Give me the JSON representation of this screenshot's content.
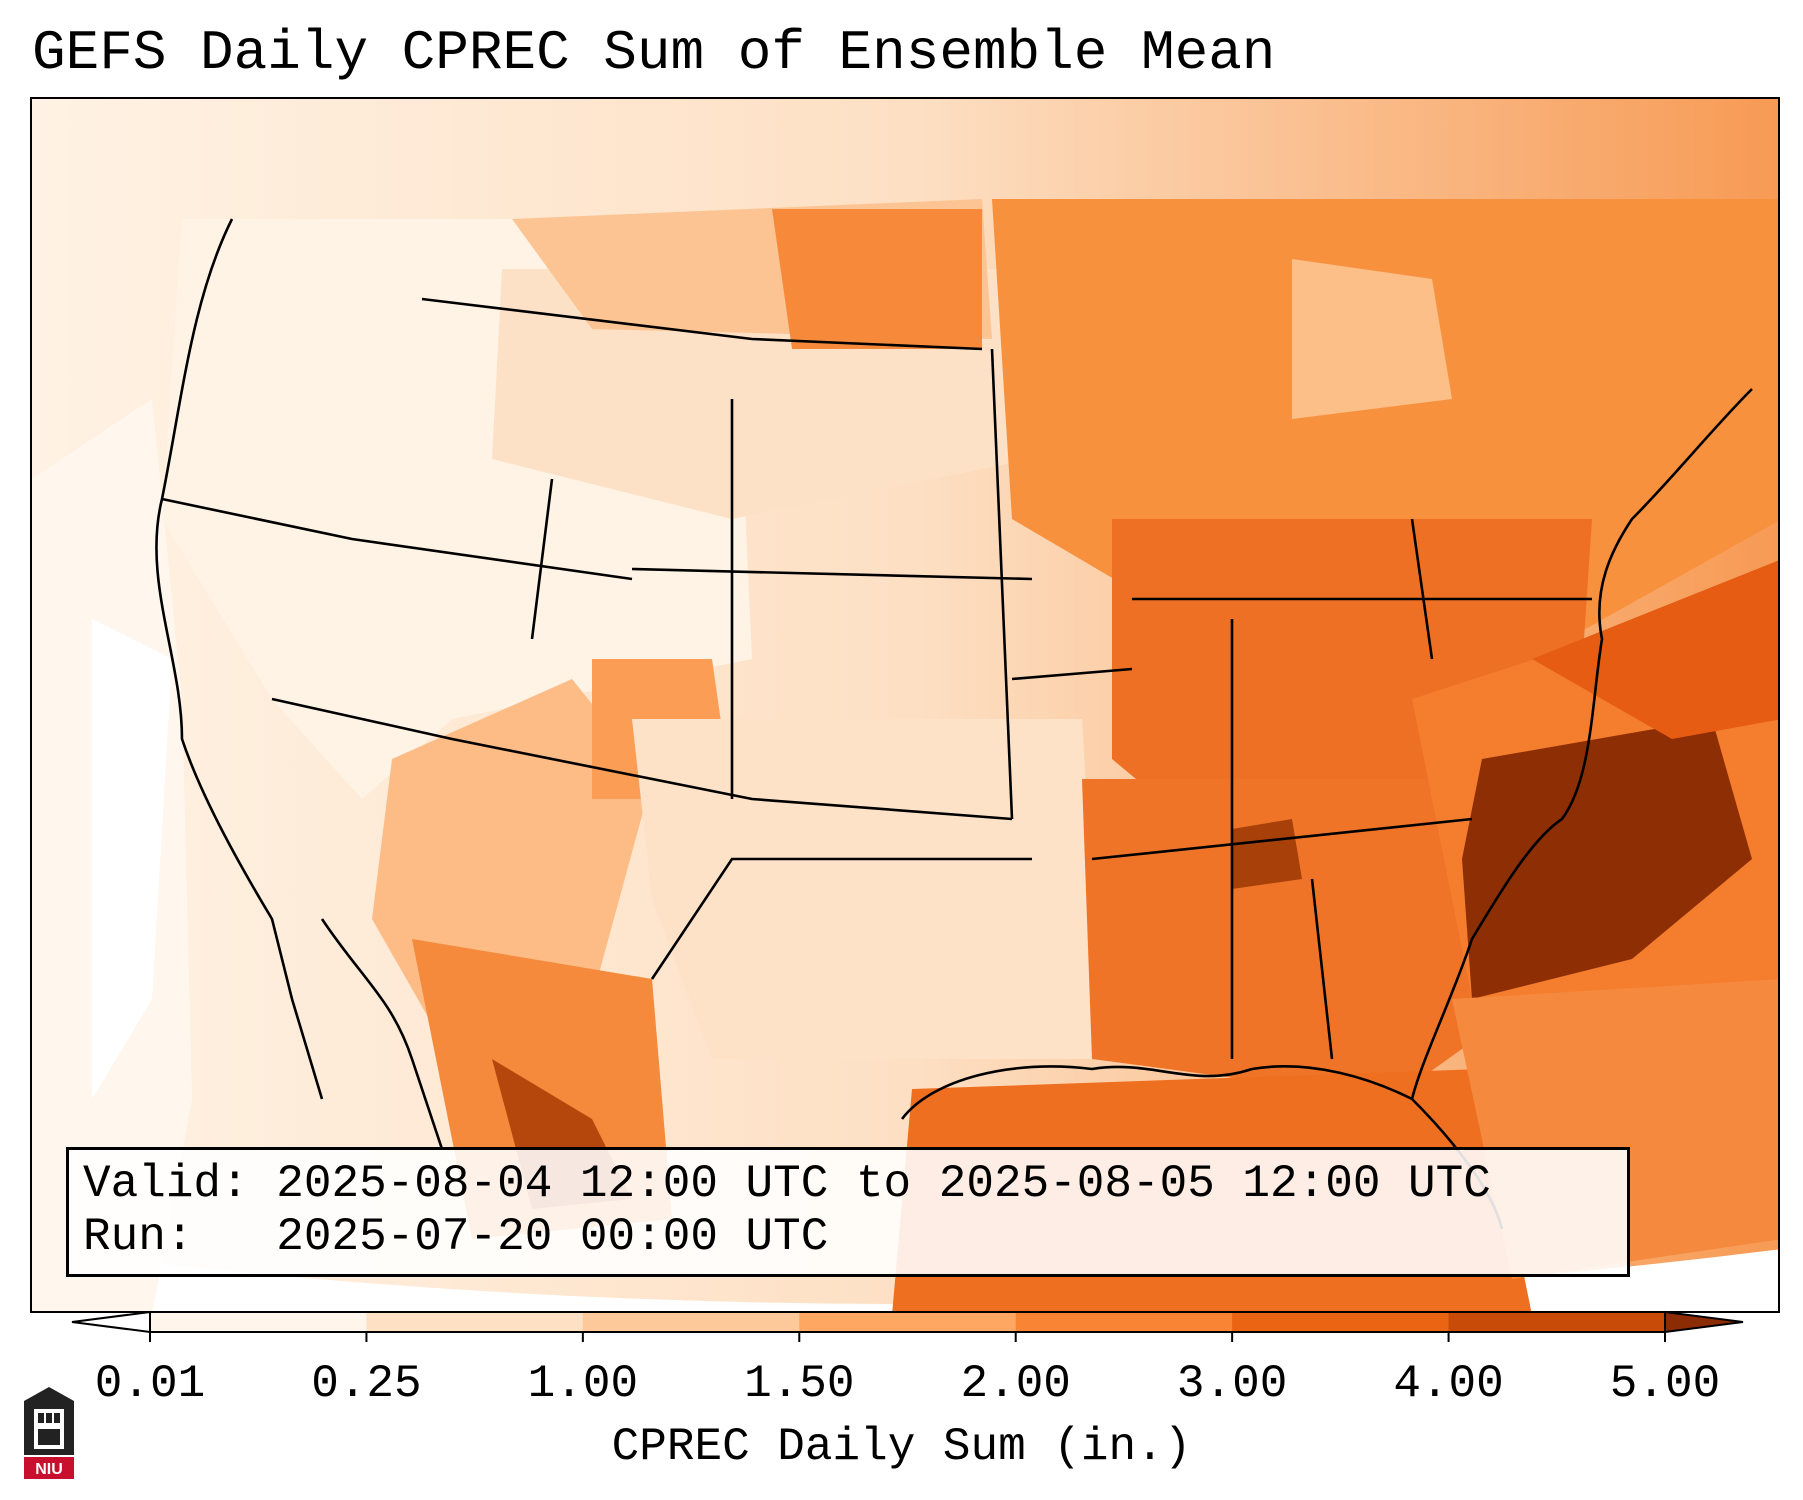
{
  "title": "GEFS Daily CPREC Sum of Ensemble Mean",
  "info": {
    "valid_label": "Valid:",
    "valid_value": "2025-08-04 12:00 UTC to 2025-08-05 12:00 UTC",
    "run_label": "Run:",
    "run_value": "2025-07-20 00:00 UTC"
  },
  "colorbar": {
    "label": "CPREC Daily Sum (in.)",
    "ticks": [
      "0.01",
      "0.25",
      "1.00",
      "1.50",
      "2.00",
      "3.00",
      "4.00",
      "5.00"
    ],
    "bins": [
      {
        "min": 0.01,
        "max": 0.25,
        "color": "#fff5eb"
      },
      {
        "min": 0.25,
        "max": 1.0,
        "color": "#fee0c4"
      },
      {
        "min": 1.0,
        "max": 1.5,
        "color": "#fdc89a"
      },
      {
        "min": 1.5,
        "max": 2.0,
        "color": "#fda763"
      },
      {
        "min": 2.0,
        "max": 3.0,
        "color": "#f98534"
      },
      {
        "min": 3.0,
        "max": 4.0,
        "color": "#ea6414"
      },
      {
        "min": 4.0,
        "max": 5.0,
        "color": "#c84b07"
      }
    ],
    "under_color": "#ffffff",
    "over_color": "#8c2c04"
  },
  "logo_text": "NIU",
  "legend_units": "in."
}
